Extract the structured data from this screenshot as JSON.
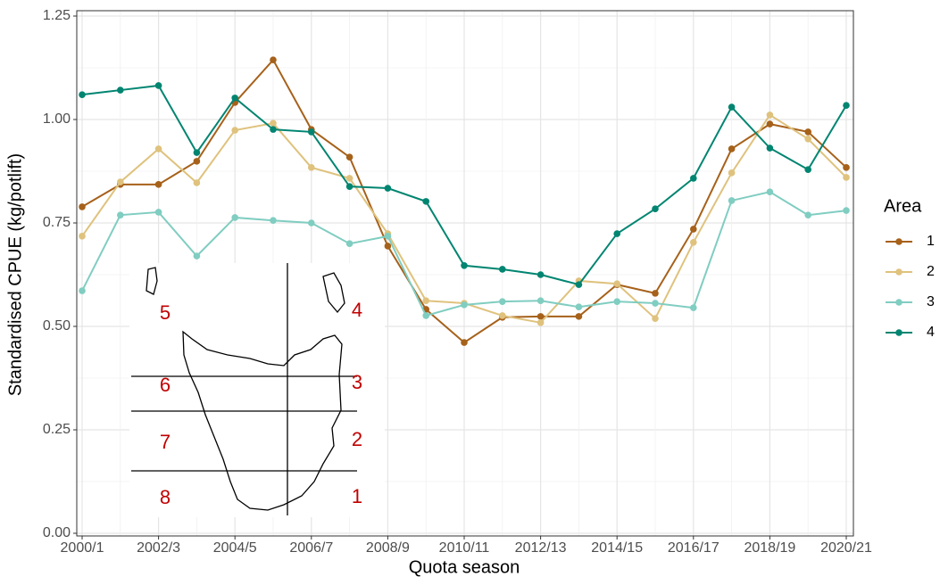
{
  "chart_data": {
    "type": "line",
    "xlabel": "Quota season",
    "ylabel": "Standardised CPUE (kg/potlift)",
    "legend_title": "Area",
    "legend_position": "right",
    "grid": true,
    "categories": [
      "2000/1",
      null,
      "2002/3",
      null,
      "2004/5",
      null,
      "2006/7",
      null,
      "2008/9",
      null,
      "2010/11",
      null,
      "2012/13",
      null,
      "2014/15",
      null,
      "2016/17",
      null,
      "2018/19",
      null,
      "2020/21"
    ],
    "ylim": [
      0,
      1.25
    ],
    "yticks": [
      {
        "value": 0,
        "label": "0.00"
      },
      0.25,
      {
        "value": 0.5,
        "label": "0.50"
      },
      0.75,
      {
        "value": 1,
        "label": "1.00"
      },
      1.25
    ],
    "series": [
      {
        "name": "1",
        "color": "#a6611a",
        "values": [
          0.789,
          0.843,
          0.843,
          0.899,
          1.041,
          1.144,
          0.976,
          0.909,
          0.694,
          0.541,
          0.461,
          0.522,
          0.524,
          0.524,
          0.601,
          0.58,
          0.735,
          0.929,
          0.989,
          0.97,
          0.884
        ]
      },
      {
        "name": "2",
        "color": "#dfc27d",
        "values": [
          0.718,
          0.849,
          0.929,
          0.847,
          0.974,
          0.991,
          0.884,
          0.858,
          0.724,
          0.562,
          0.556,
          0.526,
          0.509,
          0.61,
          0.603,
          0.519,
          0.703,
          0.871,
          1.011,
          0.953,
          0.86
        ]
      },
      {
        "name": "3",
        "color": "#80cdc1",
        "values": [
          0.586,
          0.769,
          0.776,
          0.67,
          0.763,
          0.756,
          0.75,
          0.7,
          0.718,
          0.526,
          0.552,
          0.56,
          0.562,
          0.547,
          0.56,
          0.556,
          0.545,
          0.804,
          0.825,
          0.769,
          0.78
        ]
      },
      {
        "name": "4",
        "color": "#018571",
        "values": [
          1.06,
          1.071,
          1.082,
          0.92,
          1.052,
          0.976,
          0.97,
          0.838,
          0.834,
          0.802,
          0.647,
          0.638,
          0.625,
          0.601,
          0.724,
          0.784,
          0.858,
          1.03,
          0.931,
          0.879,
          1.034
        ]
      }
    ],
    "inset_labels": [
      "1",
      "2",
      "3",
      "4",
      "5",
      "6",
      "7",
      "8"
    ]
  }
}
